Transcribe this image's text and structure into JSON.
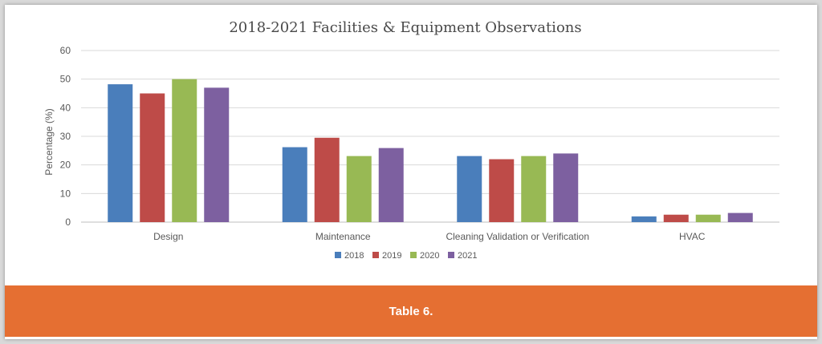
{
  "chart_data": {
    "type": "bar",
    "title": "2018-2021 Facilities & Equipment Observations",
    "ylabel": "Percentage (%)",
    "xlabel": "",
    "ylim": [
      0,
      60
    ],
    "yticks": [
      0,
      10,
      20,
      30,
      40,
      50,
      60
    ],
    "grid": true,
    "legend": "bottom",
    "categories": [
      "Design",
      "Maintenance",
      "Cleaning Validation or Verification",
      "HVAC"
    ],
    "series": [
      {
        "name": "2018",
        "color": "#4a7ebb",
        "values": [
          48.2,
          26.2,
          23.1,
          2.0
        ]
      },
      {
        "name": "2019",
        "color": "#be4b48",
        "values": [
          45.0,
          29.5,
          22.0,
          2.6
        ]
      },
      {
        "name": "2020",
        "color": "#98b954",
        "values": [
          50.0,
          23.1,
          23.1,
          2.6
        ]
      },
      {
        "name": "2021",
        "color": "#7d60a0",
        "values": [
          47.0,
          25.9,
          24.0,
          3.2
        ]
      }
    ]
  },
  "footer": {
    "caption": "Table 6.",
    "color": "#e56f32"
  }
}
